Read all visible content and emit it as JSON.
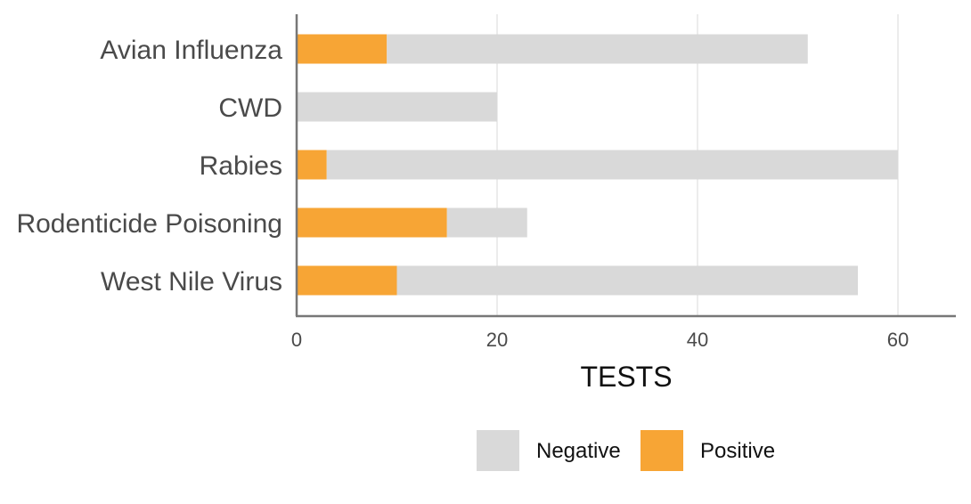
{
  "chart_data": {
    "type": "bar",
    "orientation": "horizontal",
    "stacked": true,
    "categories": [
      "Avian Influenza",
      "CWD",
      "Rabies",
      "Rodenticide Poisoning",
      "West Nile Virus"
    ],
    "series": [
      {
        "name": "Positive",
        "color": "#f7a535",
        "values": [
          9,
          0,
          3,
          15,
          10
        ]
      },
      {
        "name": "Negative",
        "color": "#d9d9d9",
        "values": [
          42,
          20,
          57,
          8,
          46
        ]
      }
    ],
    "xlabel": "TESTS",
    "xlim": [
      0,
      65
    ],
    "xticks": [
      0,
      20,
      40,
      60
    ],
    "grid": true,
    "legend": {
      "position": "bottom-right",
      "order": [
        "Negative",
        "Positive"
      ]
    }
  }
}
